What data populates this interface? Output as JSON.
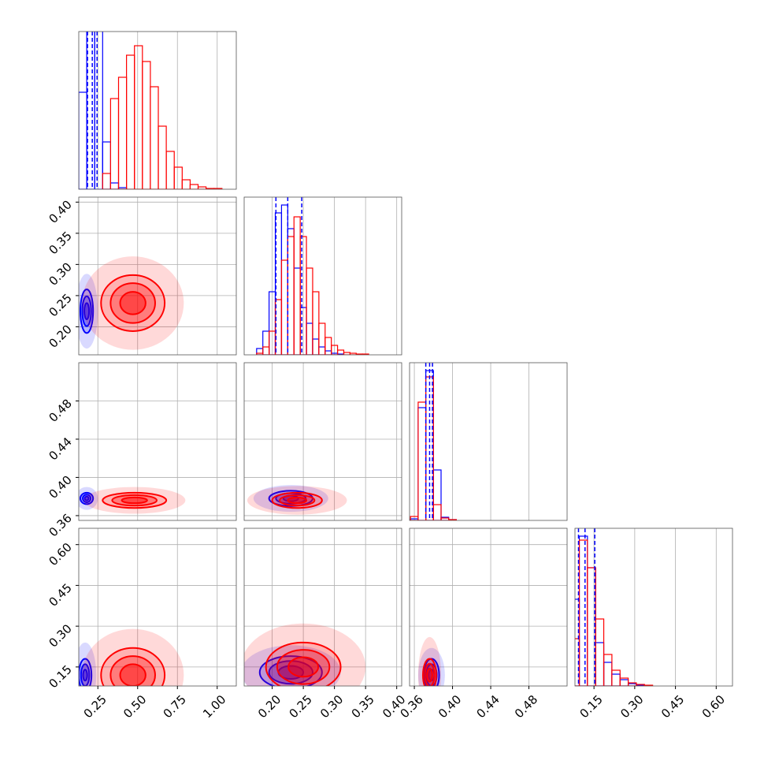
{
  "chart_data": {
    "type": "corner",
    "grid": true,
    "colors": [
      "#0000ff",
      "#ff0000"
    ],
    "params": [
      {
        "lim": [
          0.13,
          1.12
        ],
        "ticks": [
          0.25,
          {
            "value": 0.5,
            "label": "0.50"
          },
          0.75,
          {
            "value": 1.0,
            "label": "1.00"
          }
        ]
      },
      {
        "lim": [
          0.155,
          0.408
        ],
        "ticks": [
          {
            "value": 0.2,
            "label": "0.20"
          },
          0.25,
          {
            "value": 0.3,
            "label": "0.30"
          },
          0.35,
          {
            "value": 0.4,
            "label": "0.40"
          }
        ]
      },
      {
        "lim": [
          0.355,
          0.52
        ],
        "ticks": [
          0.36,
          {
            "value": 0.4,
            "label": "0.40"
          },
          0.44,
          0.48
        ]
      },
      {
        "lim": [
          0.08,
          0.66
        ],
        "ticks": [
          0.15,
          {
            "value": 0.3,
            "label": "0.30"
          },
          0.45,
          {
            "value": 0.6,
            "label": "0.60"
          }
        ]
      }
    ],
    "histograms": [
      {
        "ylim": [
          0,
          200
        ],
        "bins": [
          0.13,
          0.18,
          0.23,
          0.28,
          0.33,
          0.38,
          0.43,
          0.48,
          0.53,
          0.58,
          0.63,
          0.68,
          0.73,
          0.78,
          0.83,
          0.88,
          0.93,
          0.98,
          1.03,
          1.08,
          1.13
        ],
        "series": [
          {
            "counts": [
              123,
              210,
              220,
              60,
              8,
              2,
              0,
              0,
              0,
              0,
              0,
              0,
              0,
              0,
              0,
              0,
              0,
              0,
              0,
              0
            ]
          },
          {
            "counts": [
              0,
              0,
              0,
              20,
              115,
              142,
              170,
              182,
              162,
              130,
              80,
              48,
              28,
              12,
              6,
              3,
              1,
              1,
              0,
              0
            ]
          }
        ],
        "quantiles": [
          0.185,
          0.215,
          0.245
        ]
      },
      {
        "ylim": [
          0,
          200
        ],
        "bins": [
          0.175,
          0.185,
          0.195,
          0.205,
          0.215,
          0.225,
          0.235,
          0.245,
          0.255,
          0.265,
          0.275,
          0.285,
          0.295,
          0.305,
          0.315,
          0.325,
          0.335,
          0.345,
          0.355,
          0.365,
          0.375,
          0.385,
          0.395,
          0.405
        ],
        "series": [
          {
            "counts": [
              8,
              30,
              80,
              180,
              190,
              160,
              110,
              60,
              40,
              20,
              10,
              5,
              2,
              1,
              0,
              0,
              0,
              0,
              0,
              0,
              0,
              0,
              0
            ]
          },
          {
            "counts": [
              2,
              10,
              30,
              70,
              120,
              150,
              175,
              150,
              110,
              80,
              40,
              22,
              12,
              6,
              3,
              2,
              1,
              1,
              0,
              0,
              0,
              0,
              0
            ]
          }
        ],
        "quantiles": [
          0.206,
          0.225,
          0.2475
        ]
      },
      {
        "ylim": [
          0,
          200
        ],
        "bins": [
          0.356,
          0.364,
          0.372,
          0.38,
          0.388,
          0.396,
          0.404,
          0.412,
          0.42,
          0.428,
          0.436,
          0.444,
          0.452,
          0.46,
          0.468,
          0.476,
          0.484,
          0.492,
          0.5,
          0.508,
          0.516
        ],
        "series": [
          {
            "counts": [
              2,
              143,
              190,
              64,
              4,
              1,
              0,
              0,
              0,
              0,
              0,
              0,
              0,
              0,
              0,
              0,
              0,
              0,
              0,
              0
            ]
          },
          {
            "counts": [
              5,
              150,
              182,
              20,
              3,
              1,
              0,
              0,
              0,
              0,
              0,
              0,
              0,
              0,
              0,
              0,
              0,
              0,
              0,
              0
            ]
          }
        ],
        "quantiles": [
          0.372,
          0.376,
          0.379
        ]
      },
      {
        "ylim": [
          0,
          200
        ],
        "bins": [
          0.066,
          0.096,
          0.126,
          0.156,
          0.186,
          0.216,
          0.246,
          0.276,
          0.306,
          0.336,
          0.366,
          0.396,
          0.426,
          0.456,
          0.486,
          0.516,
          0.546,
          0.576,
          0.606,
          0.636,
          0.666
        ],
        "series": [
          {
            "counts": [
              110,
              190,
              150,
              55,
              30,
              15,
              8,
              3,
              1,
              0,
              0,
              0,
              0,
              0,
              0,
              0,
              0,
              0,
              0,
              0
            ]
          },
          {
            "counts": [
              60,
              185,
              150,
              85,
              40,
              20,
              10,
              4,
              2,
              1,
              0,
              0,
              0,
              0,
              0,
              0,
              0,
              0,
              0,
              0
            ]
          }
        ],
        "quantiles": [
          0.093,
          0.117,
          0.153
        ]
      }
    ],
    "pairs": [
      {
        "x": 0,
        "y": 1,
        "series": [
          {
            "center": [
              0.18,
              0.225
            ],
            "cloud": [
              0.07,
              0.06
            ],
            "levels": [
              [
                0.04,
                0.035
              ],
              [
                0.028,
                0.024
              ],
              [
                0.015,
                0.013
              ]
            ]
          },
          {
            "center": [
              0.47,
              0.238
            ],
            "cloud": [
              0.32,
              0.075
            ],
            "levels": [
              [
                0.2,
                0.045
              ],
              [
                0.14,
                0.032
              ],
              [
                0.08,
                0.018
              ]
            ]
          }
        ]
      },
      {
        "x": 0,
        "y": 2,
        "series": [
          {
            "center": [
              0.18,
              0.378
            ],
            "cloud": [
              0.07,
              0.012
            ],
            "levels": [
              [
                0.04,
                0.006
              ],
              [
                0.025,
                0.004
              ],
              [
                0.012,
                0.002
              ]
            ]
          },
          {
            "center": [
              0.48,
              0.376
            ],
            "cloud": [
              0.32,
              0.014
            ],
            "levels": [
              [
                0.2,
                0.008
              ],
              [
                0.14,
                0.0055
              ],
              [
                0.08,
                0.003
              ]
            ]
          }
        ]
      },
      {
        "x": 1,
        "y": 2,
        "series": [
          {
            "center": [
              0.23,
              0.378
            ],
            "cloud": [
              0.06,
              0.014
            ],
            "levels": [
              [
                0.035,
                0.008
              ],
              [
                0.024,
                0.0055
              ],
              [
                0.012,
                0.003
              ]
            ]
          },
          {
            "center": [
              0.24,
              0.376
            ],
            "cloud": [
              0.08,
              0.015
            ],
            "levels": [
              [
                0.04,
                0.008
              ],
              [
                0.028,
                0.0055
              ],
              [
                0.015,
                0.003
              ]
            ]
          }
        ]
      },
      {
        "x": 0,
        "y": 3,
        "series": [
          {
            "center": [
              0.17,
              0.12
            ],
            "cloud": [
              0.07,
              0.12
            ],
            "levels": [
              [
                0.04,
                0.06
              ],
              [
                0.026,
                0.04
              ],
              [
                0.013,
                0.02
              ]
            ]
          },
          {
            "center": [
              0.47,
              0.12
            ],
            "cloud": [
              0.32,
              0.17
            ],
            "levels": [
              [
                0.2,
                0.1
              ],
              [
                0.14,
                0.07
              ],
              [
                0.08,
                0.04
              ]
            ]
          }
        ]
      },
      {
        "x": 1,
        "y": 3,
        "series": [
          {
            "center": [
              0.23,
              0.13
            ],
            "cloud": [
              0.08,
              0.1
            ],
            "levels": [
              [
                0.05,
                0.06
              ],
              [
                0.035,
                0.042
              ],
              [
                0.02,
                0.024
              ]
            ]
          },
          {
            "center": [
              0.25,
              0.15
            ],
            "cloud": [
              0.1,
              0.16
            ],
            "levels": [
              [
                0.06,
                0.09
              ],
              [
                0.042,
                0.063
              ],
              [
                0.024,
                0.036
              ]
            ]
          }
        ]
      },
      {
        "x": 2,
        "y": 3,
        "series": [
          {
            "center": [
              0.378,
              0.12
            ],
            "cloud": [
              0.014,
              0.1
            ],
            "levels": [
              [
                0.008,
                0.06
              ],
              [
                0.0055,
                0.04
              ],
              [
                0.003,
                0.02
              ]
            ]
          },
          {
            "center": [
              0.376,
              0.12
            ],
            "cloud": [
              0.012,
              0.14
            ],
            "levels": [
              [
                0.007,
                0.06
              ],
              [
                0.005,
                0.042
              ],
              [
                0.0028,
                0.024
              ]
            ]
          }
        ]
      }
    ]
  }
}
